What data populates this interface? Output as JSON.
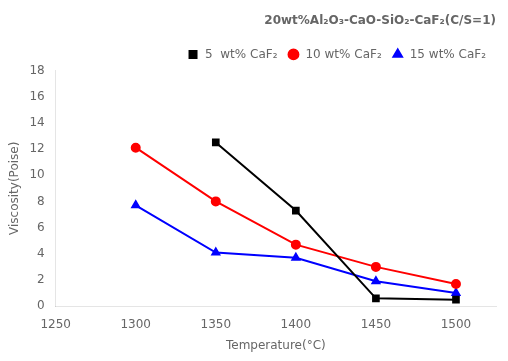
{
  "chart_data": {
    "type": "line",
    "title": "20wt%Al₂O₃-CaO-SiO₂-CaF₂(C/S=1)",
    "xlabel": "Temperature(°C)",
    "ylabel": "Viscosity(Poise)",
    "xlim": [
      1250,
      1525
    ],
    "ylim": [
      0,
      18
    ],
    "xticks": [
      1250,
      1300,
      1350,
      1400,
      1450,
      1500
    ],
    "yticks": [
      0,
      2,
      4,
      6,
      8,
      10,
      12,
      14,
      16,
      18
    ],
    "grid": false,
    "legend": "upper right",
    "series": [
      {
        "name": "5  wt% CaF₂",
        "color": "black",
        "marker": "square",
        "x": [
          1350,
          1400,
          1450,
          1500
        ],
        "values": [
          12.5,
          7.3,
          0.6,
          0.5
        ]
      },
      {
        "name": "10 wt% CaF₂",
        "color": "red",
        "marker": "circle",
        "x": [
          1300,
          1350,
          1400,
          1450,
          1500
        ],
        "values": [
          12.1,
          8.0,
          4.7,
          3.0,
          1.7
        ]
      },
      {
        "name": "15 wt% CaF₂",
        "color": "blue",
        "marker": "triangle",
        "x": [
          1300,
          1350,
          1400,
          1450,
          1500
        ],
        "values": [
          7.7,
          4.1,
          3.7,
          1.9,
          1.0
        ]
      }
    ]
  }
}
